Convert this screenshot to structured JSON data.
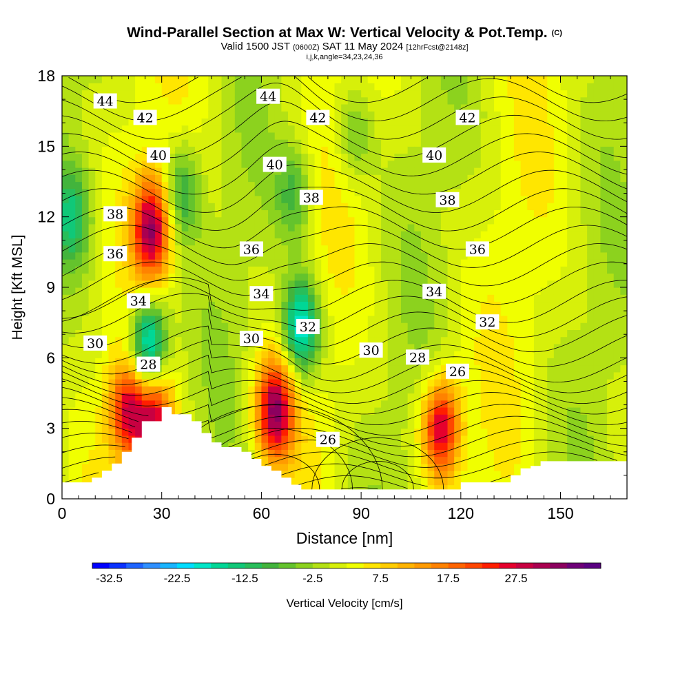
{
  "title": {
    "main": "Wind-Parallel Section at Max W: Vertical Velocity & Pot.Temp.",
    "tag": "(C)",
    "sub_prefix": "Valid 1500 JST",
    "sub_utc": "(0600Z)",
    "sub_date": "SAT 11 May 2024",
    "sub_fcst": "[12hrFcst@2148z]",
    "sub2": "i,j,k,angle=34,23,24,36"
  },
  "chart_data": {
    "type": "heatmap",
    "xlabel": "Distance [nm]",
    "ylabel": "Height [Kft MSL]",
    "xlim": [
      0,
      170
    ],
    "ylim": [
      0,
      18
    ],
    "xticks": [
      0,
      30,
      60,
      90,
      120,
      150
    ],
    "yticks": [
      0,
      3,
      6,
      9,
      12,
      15,
      18
    ],
    "colorbar": {
      "label": "Vertical Velocity [cm/s]",
      "tick_labels": [
        "-32.5",
        "-22.5",
        "-12.5",
        "-2.5",
        "7.5",
        "17.5",
        "27.5"
      ],
      "levels_start": -35,
      "level_step": 2.5,
      "colors": [
        "#0000ff",
        "#0a32ff",
        "#1e64ff",
        "#2f90ff",
        "#19b5ff",
        "#00ddff",
        "#00e6c8",
        "#00d796",
        "#10c878",
        "#28be5a",
        "#42b43c",
        "#64c32d",
        "#8cd21e",
        "#b4e114",
        "#d7f00a",
        "#f0ff00",
        "#ffe600",
        "#ffcd00",
        "#ffb400",
        "#ff9b00",
        "#ff8200",
        "#ff6400",
        "#ff4600",
        "#ff1e00",
        "#e6002d",
        "#c80041",
        "#aa0050",
        "#8c005f",
        "#6e0078",
        "#5a0082"
      ]
    },
    "w_features": [
      {
        "x": 27,
        "y": 11.5,
        "w": 29,
        "note": "updraft"
      },
      {
        "x": 28,
        "y": 3.2,
        "w": 26,
        "note": "updraft"
      },
      {
        "x": 20,
        "y": 3.8,
        "w": 24,
        "note": "updraft"
      },
      {
        "x": 64,
        "y": 3.8,
        "w": 30
      },
      {
        "x": 114,
        "y": 3.0,
        "w": 28
      },
      {
        "x": 26,
        "y": 6.5,
        "w": -25,
        "note": "downdraft"
      },
      {
        "x": 72,
        "y": 7.3,
        "w": -23,
        "note": "downdraft"
      },
      {
        "x": 3,
        "y": 12.0,
        "w": -12
      },
      {
        "x": 36,
        "y": 13.0,
        "w": -12
      },
      {
        "x": 70,
        "y": 13.0,
        "w": -10
      },
      {
        "x": 88,
        "y": 15.5,
        "w": -8
      }
    ],
    "terrain": {
      "x": [
        0,
        6,
        9,
        12,
        15,
        18,
        21,
        24,
        30,
        33,
        39,
        42,
        45,
        48,
        54,
        57,
        60,
        63,
        66,
        69,
        72,
        105,
        120,
        129,
        135,
        138,
        141,
        144,
        147,
        170
      ],
      "height": [
        0.7,
        0.7,
        0.9,
        1.2,
        1.5,
        2.0,
        2.6,
        3.3,
        3.9,
        3.6,
        3.3,
        2.8,
        2.4,
        2.2,
        2.0,
        1.7,
        1.4,
        1.2,
        0.9,
        0.6,
        0.4,
        0.4,
        0.7,
        0.7,
        1.0,
        1.3,
        1.4,
        1.6,
        1.6,
        1.6
      ]
    },
    "theta_contours": [
      {
        "level": 26,
        "label": "26",
        "label_pos": [
          80,
          2.5
        ]
      },
      {
        "level": 26,
        "label": "26",
        "label_pos": [
          119,
          5.4
        ]
      },
      {
        "level": 28,
        "label": "28",
        "label_pos": [
          26,
          5.7
        ]
      },
      {
        "level": 28,
        "label": "28",
        "label_pos": [
          107,
          6.0
        ]
      },
      {
        "level": 30,
        "label": "30",
        "label_pos": [
          10,
          6.6
        ]
      },
      {
        "level": 30,
        "label": "30",
        "label_pos": [
          57,
          6.8
        ]
      },
      {
        "level": 30,
        "label": "30",
        "label_pos": [
          93,
          6.3
        ]
      },
      {
        "level": 32,
        "label": "32",
        "label_pos": [
          74,
          7.3
        ]
      },
      {
        "level": 32,
        "label": "32",
        "label_pos": [
          128,
          7.5
        ]
      },
      {
        "level": 34,
        "label": "34",
        "label_pos": [
          23,
          8.4
        ]
      },
      {
        "level": 34,
        "label": "34",
        "label_pos": [
          60,
          8.7
        ]
      },
      {
        "level": 34,
        "label": "34",
        "label_pos": [
          112,
          8.8
        ]
      },
      {
        "level": 36,
        "label": "36",
        "label_pos": [
          16,
          10.4
        ]
      },
      {
        "level": 36,
        "label": "36",
        "label_pos": [
          57,
          10.6
        ]
      },
      {
        "level": 36,
        "label": "36",
        "label_pos": [
          125,
          10.6
        ]
      },
      {
        "level": 38,
        "label": "38",
        "label_pos": [
          16,
          12.1
        ]
      },
      {
        "level": 38,
        "label": "38",
        "label_pos": [
          75,
          12.8
        ]
      },
      {
        "level": 38,
        "label": "38",
        "label_pos": [
          116,
          12.7
        ]
      },
      {
        "level": 40,
        "label": "40",
        "label_pos": [
          29,
          14.6
        ]
      },
      {
        "level": 40,
        "label": "40",
        "label_pos": [
          64,
          14.2
        ]
      },
      {
        "level": 40,
        "label": "40",
        "label_pos": [
          112,
          14.6
        ]
      },
      {
        "level": 42,
        "label": "42",
        "label_pos": [
          25,
          16.2
        ]
      },
      {
        "level": 42,
        "label": "42",
        "label_pos": [
          77,
          16.2
        ]
      },
      {
        "level": 42,
        "label": "42",
        "label_pos": [
          122,
          16.2
        ]
      },
      {
        "level": 44,
        "label": "44",
        "label_pos": [
          13,
          16.9
        ]
      },
      {
        "level": 44,
        "label": "44",
        "label_pos": [
          62,
          17.1
        ]
      }
    ]
  }
}
